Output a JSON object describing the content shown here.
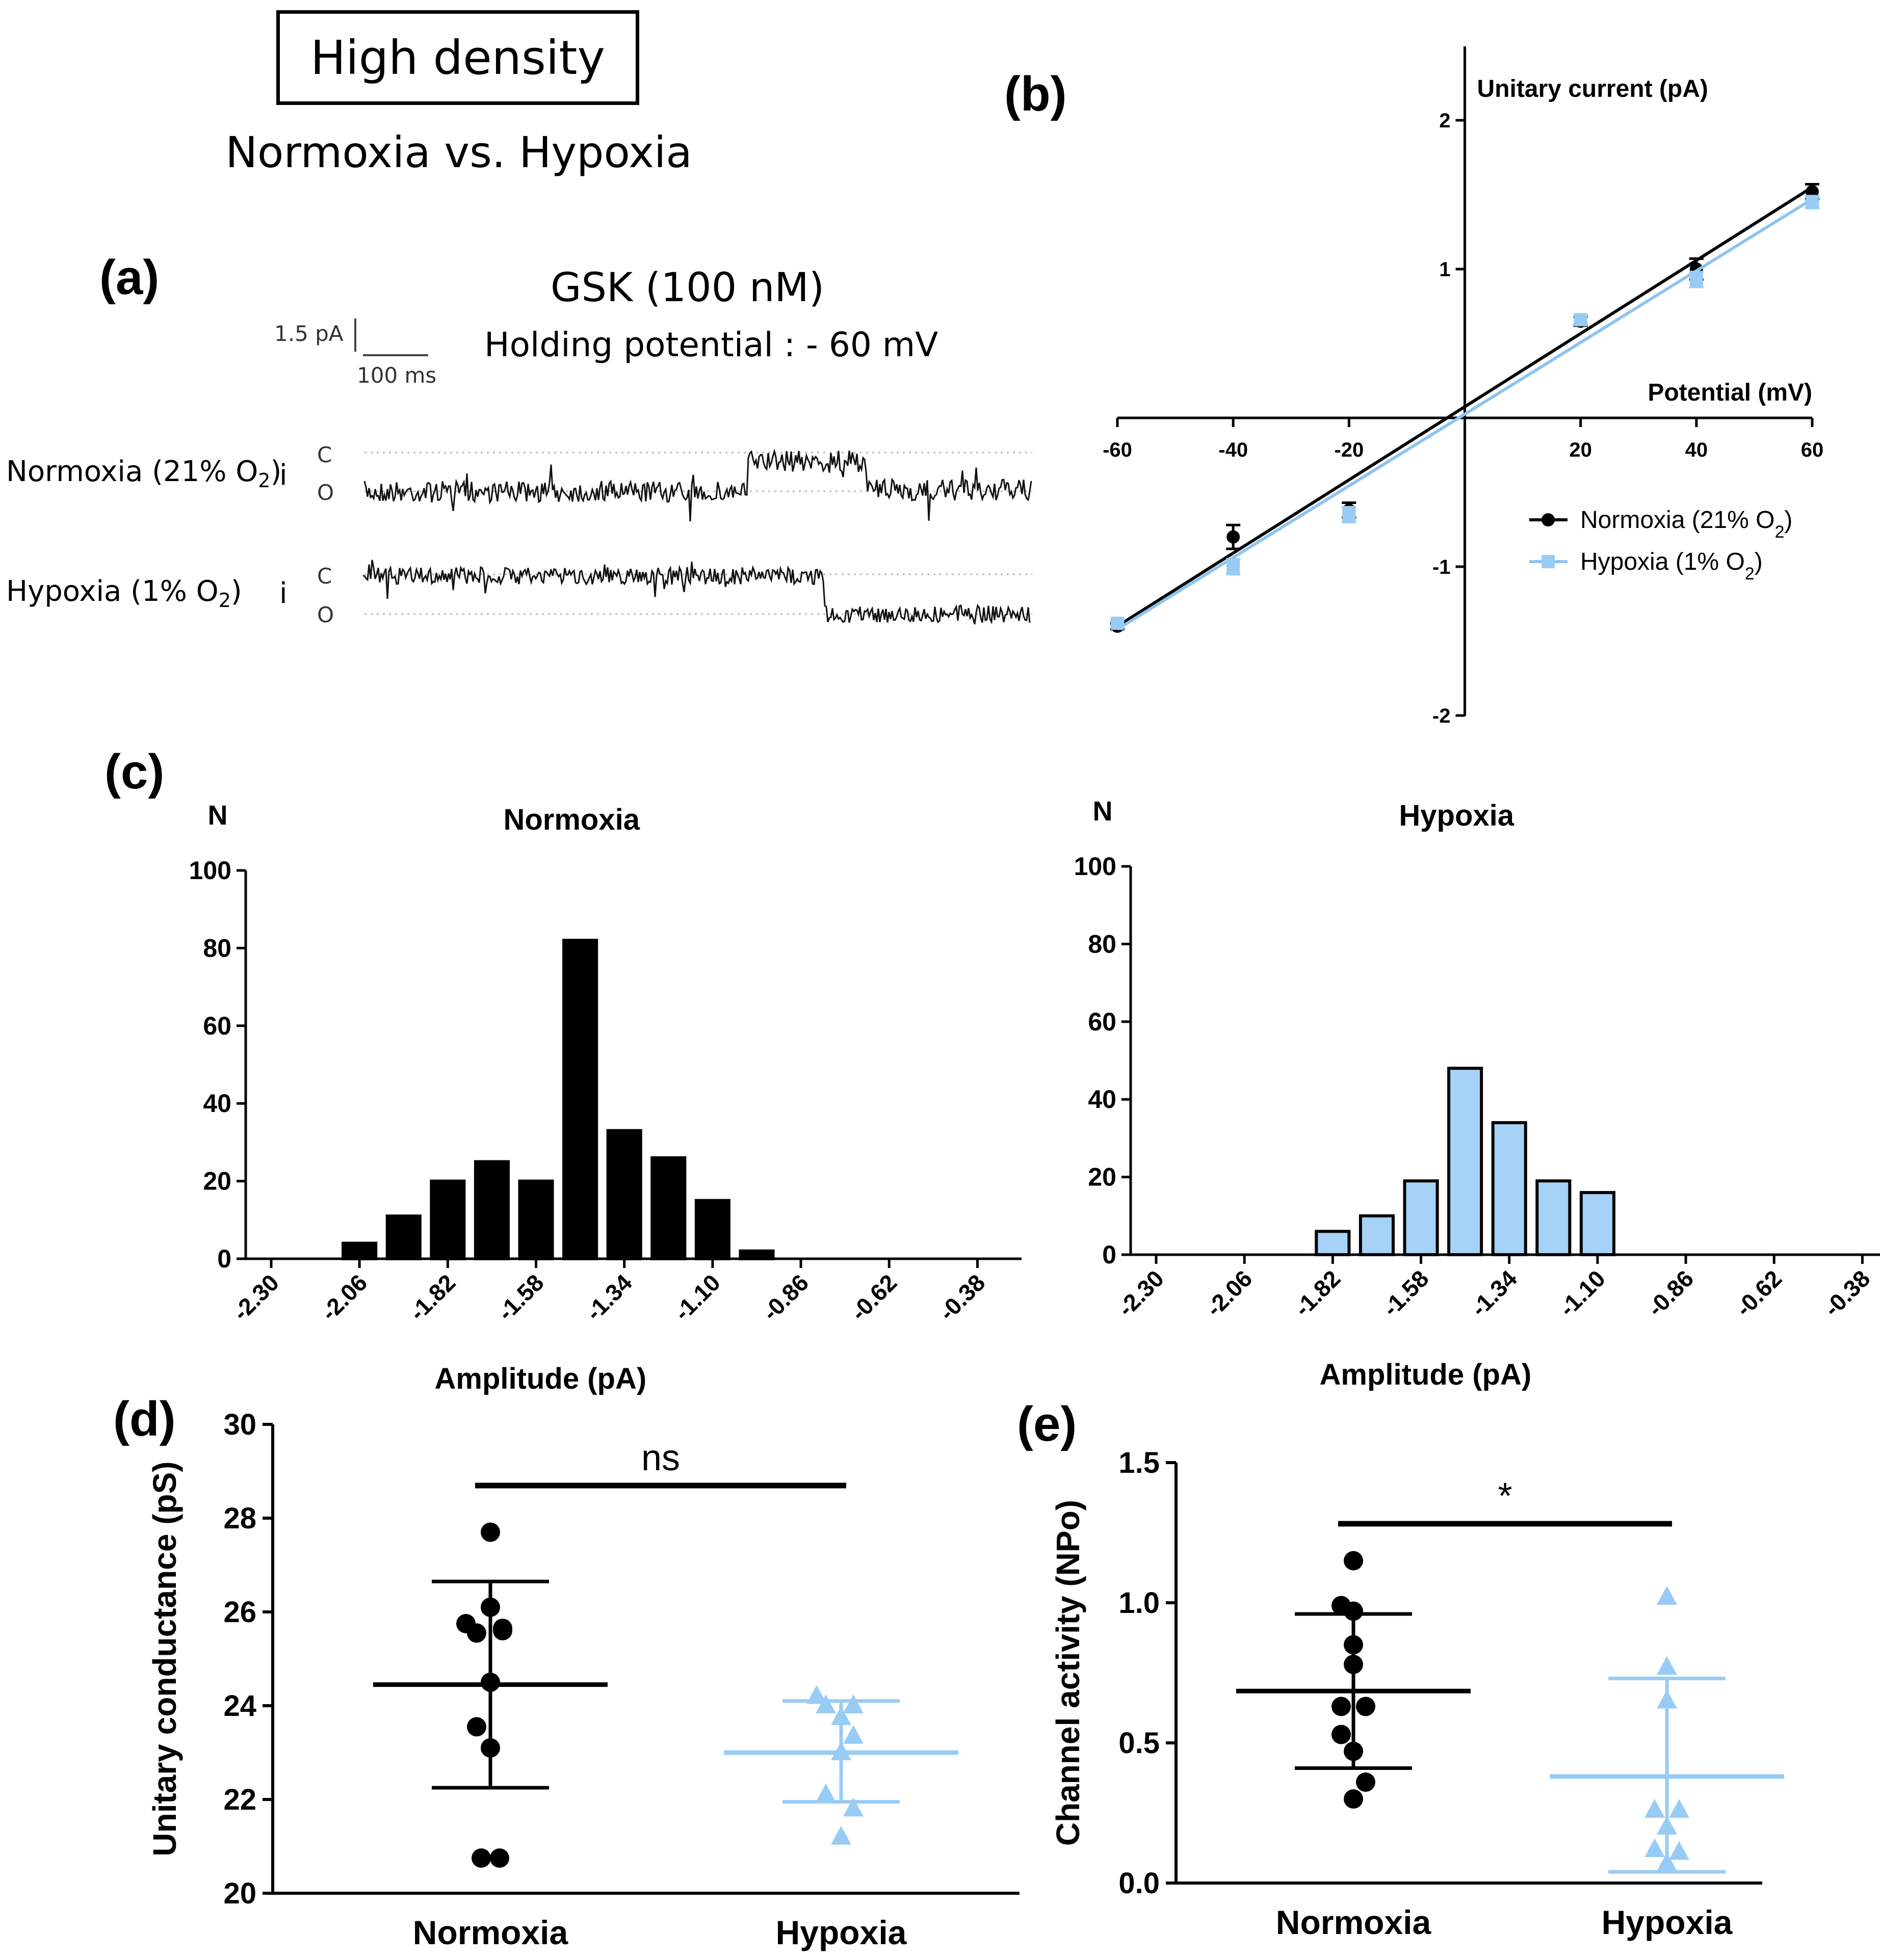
{
  "header": {
    "title": "High density",
    "subtitle": "Normoxia vs. Hypoxia"
  },
  "panel_labels": [
    "(a)",
    "(b)",
    "(c)",
    "(d)",
    "(e)"
  ],
  "panel_a": {
    "drug": "GSK (100 nM)",
    "holding": "Holding potential : -  60 mV",
    "scale_current": "1.5 pA",
    "scale_time": "100 ms",
    "row1_label": "Normoxia (21% O",
    "row1_sub": "2",
    "row1_end": ")",
    "row2_label": "Hypoxia (1% O",
    "row2_sub": "2",
    "row2_end": ")",
    "i_label": "i",
    "closed": "C",
    "open": "O"
  },
  "colors": {
    "normoxia": "#000000",
    "hypoxia": "#99ccf5",
    "hypoxia_line": "#8ec3f0",
    "hypoxia_fill": "#a6d2f7",
    "axis": "#000000"
  },
  "chart_data": [
    {
      "id": "b",
      "type": "line",
      "title": "",
      "ylabel": "Unitary current (pA)",
      "xlabel": "Potential (mV)",
      "xlim": [
        -60,
        60
      ],
      "ylim": [
        -2,
        2.5
      ],
      "xticks": [
        -60,
        -40,
        -20,
        20,
        40,
        60
      ],
      "yticks": [
        -2,
        -1,
        1,
        2
      ],
      "series": [
        {
          "name": "Normoxia (21% O",
          "name_sub": "2",
          "name_end": ")",
          "x": [
            -60,
            -40,
            -20,
            20,
            40,
            60
          ],
          "y": [
            -1.4,
            -0.8,
            -0.62,
            0.65,
            1.0,
            1.52
          ],
          "err": [
            0.02,
            0.08,
            0.05,
            0.03,
            0.07,
            0.05
          ],
          "fit": [
            [
              -60,
              -1.4
            ],
            [
              60,
              1.55
            ]
          ]
        },
        {
          "name": "Hypoxia (1% O",
          "name_sub": "2",
          "name_end": ")",
          "x": [
            -60,
            -40,
            -20,
            20,
            40,
            60
          ],
          "y": [
            -1.38,
            -1.0,
            -0.65,
            0.66,
            0.93,
            1.45
          ],
          "err": [
            0.02,
            0.05,
            0.05,
            0.03,
            0.05,
            0.04
          ],
          "fit": [
            [
              -60,
              -1.42
            ],
            [
              60,
              1.47
            ]
          ]
        }
      ]
    },
    {
      "id": "c-normoxia",
      "type": "bar",
      "title": "Normoxia",
      "ylabel": "N",
      "xlabel": "Amplitude (pA)",
      "ylim": [
        0,
        100
      ],
      "yticks": [
        0,
        20,
        40,
        60,
        80,
        100
      ],
      "xticklabels": [
        "-2.30",
        "-2.06",
        "-1.82",
        "-1.58",
        "-1.34",
        "-1.10",
        "-0.86",
        "-0.62",
        "-0.38"
      ],
      "xrange": [
        -2.36,
        -0.32
      ],
      "bins": [
        -2.06,
        -1.94,
        -1.82,
        -1.7,
        -1.58,
        -1.46,
        -1.34,
        -1.22,
        -1.1,
        -0.98
      ],
      "values": [
        4,
        11,
        20,
        25,
        20,
        82,
        33,
        26,
        15,
        2
      ]
    },
    {
      "id": "c-hypoxia",
      "type": "bar",
      "title": "Hypoxia",
      "ylabel": "N",
      "xlabel": "Amplitude (pA)",
      "ylim": [
        0,
        100
      ],
      "yticks": [
        0,
        20,
        40,
        60,
        80,
        100
      ],
      "xticklabels": [
        "-2.30",
        "-2.06",
        "-1.82",
        "-1.58",
        "-1.34",
        "-1.10",
        "-0.86",
        "-0.62",
        "-0.38"
      ],
      "xrange": [
        -2.36,
        -0.32
      ],
      "bins": [
        -1.82,
        -1.7,
        -1.58,
        -1.46,
        -1.34,
        -1.22,
        -1.1
      ],
      "values": [
        6,
        10,
        19,
        48,
        34,
        19,
        16
      ]
    },
    {
      "id": "d",
      "type": "scatter",
      "ylabel": "Unitary conductance (pS)",
      "ylim": [
        20,
        30
      ],
      "yticks": [
        20,
        22,
        24,
        26,
        28,
        30
      ],
      "categories": [
        "Normoxia",
        "Hypoxia"
      ],
      "significance": "ns",
      "series": [
        {
          "name": "Normoxia",
          "mean": 24.45,
          "sd_low": 22.25,
          "sd_high": 26.65,
          "points": [
            [
              0,
              27.7
            ],
            [
              -0.16,
              25.75
            ],
            [
              -0.09,
              25.55
            ],
            [
              0,
              26.1
            ],
            [
              0.08,
              25.6
            ],
            [
              0.08,
              25.65
            ],
            [
              0,
              24.5
            ],
            [
              -0.09,
              23.55
            ],
            [
              0,
              23.1
            ],
            [
              -0.06,
              20.75
            ],
            [
              0.06,
              20.75
            ]
          ]
        },
        {
          "name": "Hypoxia",
          "mean": 23.0,
          "sd_low": 21.95,
          "sd_high": 24.1,
          "points": [
            [
              -0.16,
              24.2
            ],
            [
              -0.1,
              24.0
            ],
            [
              0.08,
              24.0
            ],
            [
              0,
              23.75
            ],
            [
              0.08,
              23.35
            ],
            [
              0,
              23.0
            ],
            [
              -0.1,
              22.1
            ],
            [
              0.08,
              21.8
            ],
            [
              0,
              21.2
            ]
          ]
        }
      ]
    },
    {
      "id": "e",
      "type": "scatter",
      "ylabel": "Channel activity (NPo)",
      "ylim": [
        0,
        1.5
      ],
      "yticks": [
        0.0,
        0.5,
        1.0,
        1.5
      ],
      "yticklabels": [
        "0.0",
        "0.5",
        "1.0",
        "1.5"
      ],
      "categories": [
        "Normoxia",
        "Hypoxia"
      ],
      "significance": "*",
      "series": [
        {
          "name": "Normoxia",
          "mean": 0.685,
          "sd_low": 0.41,
          "sd_high": 0.96,
          "points": [
            [
              0,
              1.15
            ],
            [
              -0.08,
              0.99
            ],
            [
              0,
              0.97
            ],
            [
              0,
              0.85
            ],
            [
              0,
              0.78
            ],
            [
              -0.08,
              0.63
            ],
            [
              0.08,
              0.63
            ],
            [
              -0.08,
              0.53
            ],
            [
              0,
              0.47
            ],
            [
              0.08,
              0.36
            ],
            [
              0,
              0.3
            ]
          ]
        },
        {
          "name": "Hypoxia",
          "mean": 0.38,
          "sd_low": 0.04,
          "sd_high": 0.73,
          "points": [
            [
              0,
              1.02
            ],
            [
              0,
              0.77
            ],
            [
              0,
              0.65
            ],
            [
              -0.08,
              0.26
            ],
            [
              0.08,
              0.26
            ],
            [
              0,
              0.2
            ],
            [
              -0.08,
              0.12
            ],
            [
              0.08,
              0.11
            ],
            [
              0,
              0.07
            ]
          ]
        }
      ]
    }
  ]
}
